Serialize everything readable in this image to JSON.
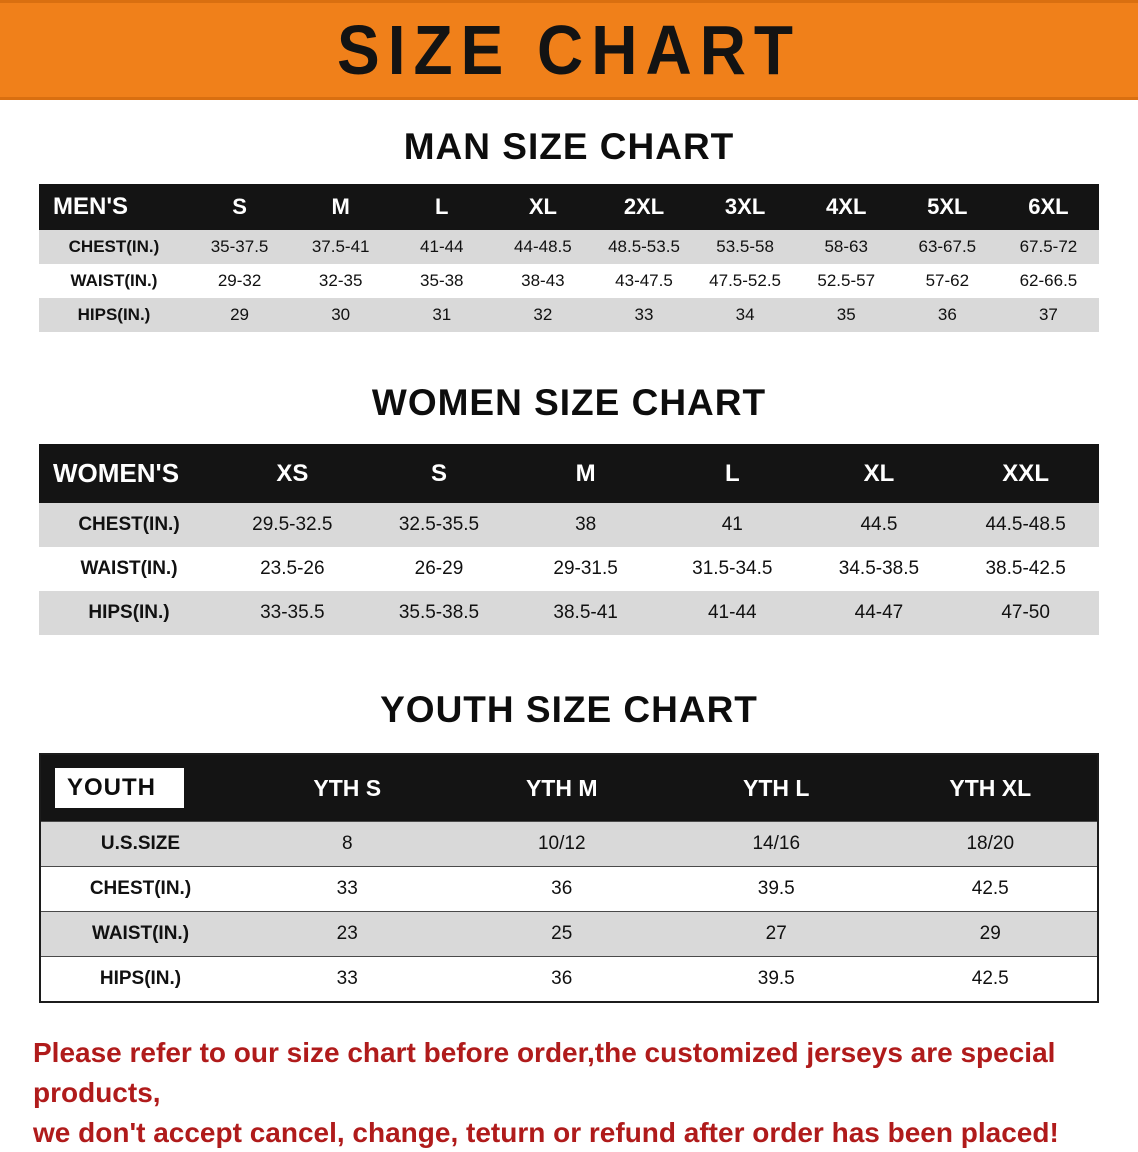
{
  "banner": {
    "title": "SIZE CHART"
  },
  "colors": {
    "banner_bg": "#f0801a",
    "stripe": "#d9d9d9",
    "header_bg": "#141414",
    "notice_red": "#b01b1b"
  },
  "sections": [
    {
      "id": "men",
      "heading": "MAN SIZE CHART",
      "table": {
        "label_boxed": false,
        "header": [
          "MEN'S",
          "S",
          "M",
          "L",
          "XL",
          "2XL",
          "3XL",
          "4XL",
          "5XL",
          "6XL"
        ],
        "rows": [
          [
            "CHEST(IN.)",
            "35-37.5",
            "37.5-41",
            "41-44",
            "44-48.5",
            "48.5-53.5",
            "53.5-58",
            "58-63",
            "63-67.5",
            "67.5-72"
          ],
          [
            "WAIST(IN.)",
            "29-32",
            "32-35",
            "35-38",
            "38-43",
            "43-47.5",
            "47.5-52.5",
            "52.5-57",
            "57-62",
            "62-66.5"
          ],
          [
            "HIPS(IN.)",
            "29",
            "30",
            "31",
            "32",
            "33",
            "34",
            "35",
            "36",
            "37"
          ]
        ]
      }
    },
    {
      "id": "women",
      "heading": "WOMEN SIZE CHART",
      "table": {
        "label_boxed": false,
        "header": [
          "WOMEN'S",
          "XS",
          "S",
          "M",
          "L",
          "XL",
          "XXL"
        ],
        "rows": [
          [
            "CHEST(IN.)",
            "29.5-32.5",
            "32.5-35.5",
            "38",
            "41",
            "44.5",
            "44.5-48.5"
          ],
          [
            "WAIST(IN.)",
            "23.5-26",
            "26-29",
            "29-31.5",
            "31.5-34.5",
            "34.5-38.5",
            "38.5-42.5"
          ],
          [
            "HIPS(IN.)",
            "33-35.5",
            "35.5-38.5",
            "38.5-41",
            "41-44",
            "44-47",
            "47-50"
          ]
        ]
      }
    },
    {
      "id": "youth",
      "heading": "YOUTH SIZE CHART",
      "table": {
        "label_boxed": true,
        "header": [
          "YOUTH",
          "YTH S",
          "YTH M",
          "YTH L",
          "YTH XL"
        ],
        "rows": [
          [
            "U.S.SIZE",
            "8",
            "10/12",
            "14/16",
            "18/20"
          ],
          [
            "CHEST(IN.)",
            "33",
            "36",
            "39.5",
            "42.5"
          ],
          [
            "WAIST(IN.)",
            "23",
            "25",
            "27",
            "29"
          ],
          [
            "HIPS(IN.)",
            "33",
            "36",
            "39.5",
            "42.5"
          ]
        ]
      }
    }
  ],
  "notice": {
    "lines": [
      "Please refer to our size chart before order,the customized jerseys are special products,",
      "we don't accept cancel, change, teturn or refund after order has been placed!"
    ]
  }
}
